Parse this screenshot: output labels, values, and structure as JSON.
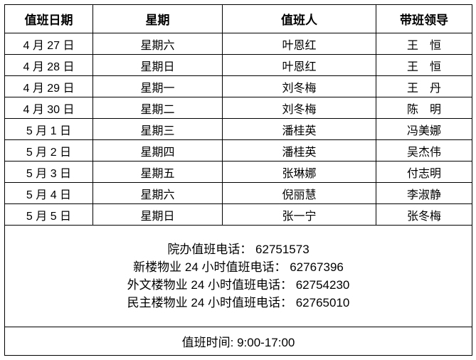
{
  "headers": [
    "值班日期",
    "星期",
    "值班人",
    "带班领导"
  ],
  "rows": [
    {
      "date": "4 月 27 日",
      "weekday": "星期六",
      "person": "叶恩红",
      "leader": "王　恒"
    },
    {
      "date": "4 月 28 日",
      "weekday": "星期日",
      "person": "叶恩红",
      "leader": "王　恒"
    },
    {
      "date": "4 月 29 日",
      "weekday": "星期一",
      "person": "刘冬梅",
      "leader": "王　丹"
    },
    {
      "date": "4 月 30 日",
      "weekday": "星期二",
      "person": "刘冬梅",
      "leader": "陈　明"
    },
    {
      "date": "5 月 1 日",
      "weekday": "星期三",
      "person": "潘桂英",
      "leader": "冯美娜"
    },
    {
      "date": "5 月 2 日",
      "weekday": "星期四",
      "person": "潘桂英",
      "leader": "吴杰伟"
    },
    {
      "date": "5 月 3 日",
      "weekday": "星期五",
      "person": "张琳娜",
      "leader": "付志明"
    },
    {
      "date": "5 月 4 日",
      "weekday": "星期六",
      "person": "倪丽慧",
      "leader": "李淑静"
    },
    {
      "date": "5 月 5 日",
      "weekday": "星期日",
      "person": "张一宁",
      "leader": "张冬梅"
    }
  ],
  "phones": [
    "院办值班电话： 62751573",
    "新楼物业 24 小时值班电话： 62767396",
    "外文楼物业 24 小时值班电话： 62754230",
    "民主楼物业 24 小时值班电话： 62765010"
  ],
  "duty_time": "值班时间: 9:00-17:00"
}
